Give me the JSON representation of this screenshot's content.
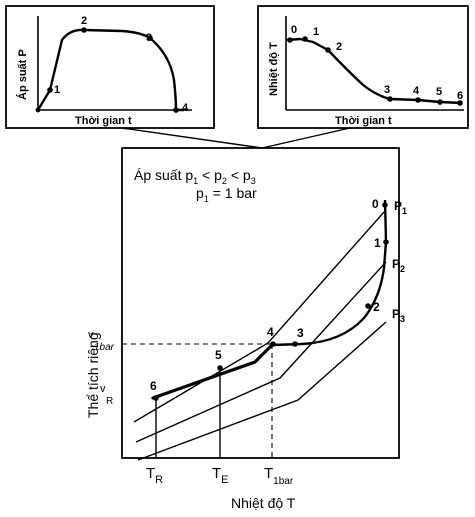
{
  "top_left": {
    "y_label": "Áp suất P",
    "x_label": "Thời gian t",
    "points": [
      "1",
      "2",
      "3",
      "4"
    ]
  },
  "top_right": {
    "y_label": "Nhiệt độ T",
    "x_label": "Thời gian t",
    "points": [
      "0",
      "1",
      "2",
      "3",
      "4",
      "5",
      "6"
    ]
  },
  "main": {
    "title_prefix": "Áp suất p",
    "title_rel": "1 < p",
    "title_rel2": "2 < p",
    "title_sub3": "3",
    "cond_main": "p",
    "cond_sub": "1",
    "cond_rest": " = 1 bar",
    "y_label": "Thể tích riêng",
    "x_label": "Nhiệt độ T",
    "v1bar_main": "v",
    "v1bar_sub": "1bar",
    "vR_main": "v",
    "vR_sub": "R",
    "tR_main": "T",
    "tR_sub": "R",
    "tE_main": "T",
    "tE_sub": "E",
    "t1bar_main": "T",
    "t1bar_sub": "1bar",
    "isobar_main": "P",
    "p1_sub": "1",
    "p2_sub": "2",
    "p3_sub": "3",
    "points": [
      "0",
      "1",
      "2",
      "3",
      "4",
      "5",
      "6"
    ]
  }
}
